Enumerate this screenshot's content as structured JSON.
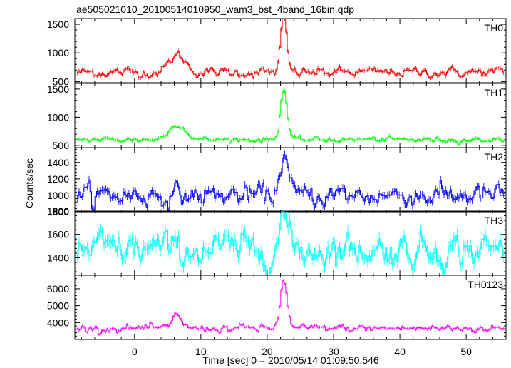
{
  "chart_data": {
    "type": "line",
    "title": "ae505021010_20100514010950_wam3_bst_4band_16bin.qdp",
    "xlabel": "Time [sec] 0 = 2010/05/14 01:09:50.546",
    "ylabel": "Counts/sec",
    "xlim": [
      -9,
      56
    ],
    "x_ticks": [
      0,
      10,
      20,
      30,
      40,
      50
    ],
    "x_tick_labels": [
      "0",
      "10",
      "20",
      "30",
      "40",
      "50"
    ],
    "shared_x": true,
    "grid": false,
    "bin_width_sec": 0.25,
    "panels": [
      {
        "name": "TH0",
        "color": "#ff0000",
        "ylim": [
          480,
          1600
        ],
        "y_ticks": [
          500,
          1000,
          1500
        ],
        "y_tick_labels": [
          "500",
          "1000",
          "1500"
        ],
        "baseline": 660,
        "noise": 45,
        "features": [
          {
            "center": 6.5,
            "width": 1.2,
            "height": 300
          },
          {
            "center": 22.5,
            "width": 0.45,
            "height": 950
          }
        ]
      },
      {
        "name": "TH1",
        "color": "#00ff00",
        "ylim": [
          460,
          1600
        ],
        "y_ticks": [
          500,
          1000,
          1500
        ],
        "y_tick_labels": [
          "500",
          "1000",
          "1500"
        ],
        "baseline": 600,
        "noise": 25,
        "features": [
          {
            "center": 6.5,
            "width": 1.2,
            "height": 280
          },
          {
            "center": 22.5,
            "width": 0.5,
            "height": 900
          }
        ]
      },
      {
        "name": "TH2",
        "color": "#0000ff",
        "ylim": [
          800,
          1580
        ],
        "y_ticks": [
          800,
          1000,
          1200,
          1400
        ],
        "y_tick_labels": [
          "800",
          "1000",
          "1200",
          "1400"
        ],
        "baseline": 1000,
        "noise": 70,
        "features": [
          {
            "center": 22.5,
            "width": 0.6,
            "height": 500
          }
        ]
      },
      {
        "name": "TH3",
        "color": "#00ffff",
        "ylim": [
          1250,
          1800
        ],
        "y_ticks": [
          1400,
          1600,
          1800
        ],
        "y_tick_labels": [
          "1400",
          "1600",
          "1800"
        ],
        "baseline": 1470,
        "noise": 75,
        "features": [
          {
            "center": 22.5,
            "width": 0.6,
            "height": 300
          }
        ]
      },
      {
        "name": "TH0123",
        "color": "#ff00ff",
        "ylim": [
          3000,
          6800
        ],
        "y_ticks": [
          4000,
          5000,
          6000
        ],
        "y_tick_labels": [
          "4000",
          "5000",
          "6000"
        ],
        "baseline": 3650,
        "noise": 120,
        "features": [
          {
            "center": 6.5,
            "width": 0.6,
            "height": 900
          },
          {
            "center": 22.5,
            "width": 0.5,
            "height": 2900
          }
        ]
      }
    ]
  }
}
